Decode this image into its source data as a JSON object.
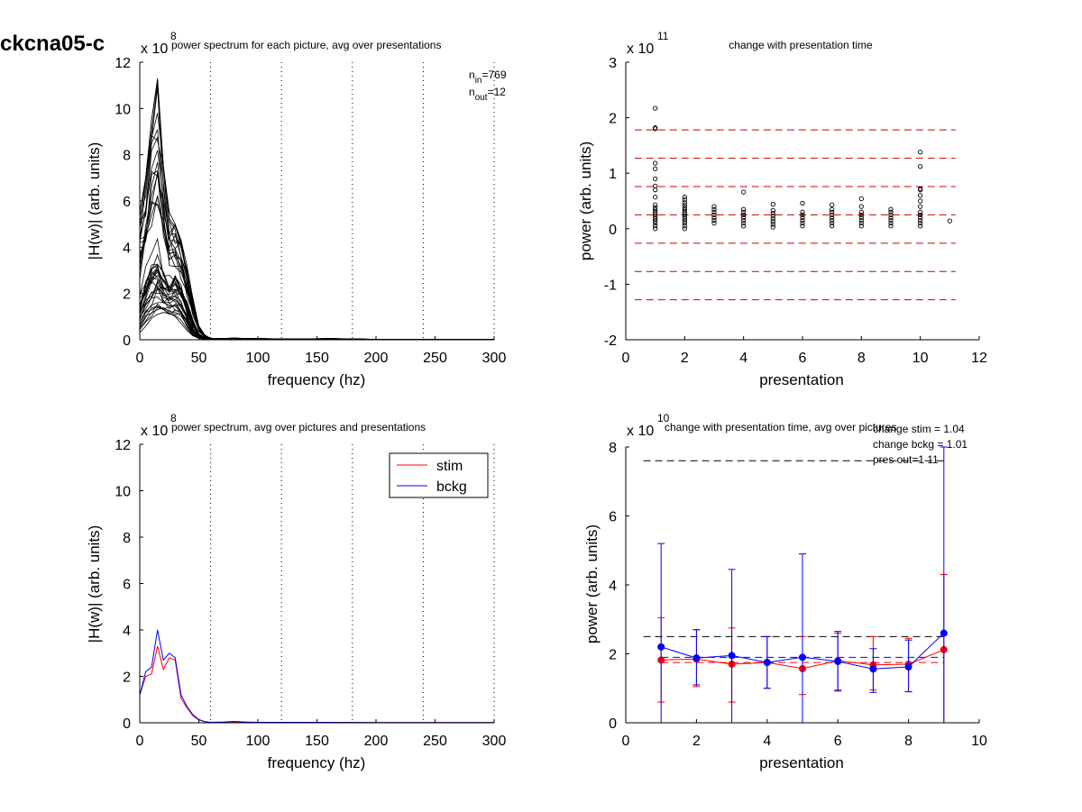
{
  "figure_label": "ckcna05-c",
  "colors": {
    "stim": "#ff0000",
    "bckg": "#0000ff",
    "spectrum_lines": "#000000",
    "dashed_ref_red": "#cc0000",
    "dashed_ref_black": "#000000"
  },
  "chart_data": [
    {
      "id": "p1",
      "type": "line",
      "title": "power spectrum for each picture, avg over presentations",
      "xlabel": "frequency (hz)",
      "ylabel": "|H(w)| (arb. units)",
      "exponent_base": "x 10",
      "exponent_power": "8",
      "xlim": [
        0,
        300
      ],
      "ylim": [
        0,
        12
      ],
      "xticks": [
        0,
        50,
        100,
        150,
        200,
        250,
        300
      ],
      "yticks": [
        0,
        2,
        4,
        6,
        8,
        10,
        12
      ],
      "vlines": [
        60,
        120,
        180,
        240,
        300
      ],
      "n_in_label": "n",
      "n_in_sub": "in",
      "n_in_value": "=769",
      "n_out_label": "n",
      "n_out_sub": "out",
      "n_out_value": "=12",
      "x": [
        0,
        5,
        10,
        15,
        20,
        25,
        30,
        35,
        40,
        45,
        50,
        55,
        60,
        70,
        80,
        90,
        100,
        120,
        140,
        160,
        180,
        200,
        250,
        300
      ],
      "envelope": {
        "mean": [
          1.5,
          2.4,
          2.9,
          3.1,
          2.6,
          2.4,
          2.5,
          2.1,
          1.4,
          0.7,
          0.25,
          0.08,
          0.03,
          0.03,
          0.04,
          0.03,
          0.03,
          0.02,
          0.02,
          0.02,
          0.02,
          0.01,
          0.01,
          0.005
        ],
        "max": [
          5.5,
          7.0,
          9.5,
          11.3,
          7.5,
          5.5,
          5.0,
          4.3,
          3.2,
          1.8,
          0.6,
          0.2,
          0.06,
          0.06,
          0.07,
          0.06,
          0.05,
          0.04,
          0.04,
          0.05,
          0.04,
          0.02,
          0.02,
          0.01
        ],
        "min": [
          0.3,
          0.6,
          0.9,
          1.2,
          1.1,
          1.0,
          1.0,
          0.8,
          0.4,
          0.15,
          0.05,
          0.02,
          0.01,
          0.01,
          0.01,
          0.01,
          0.01,
          0.005,
          0.005,
          0.005,
          0.005,
          0.003,
          0.003,
          0.001
        ]
      },
      "n_curves": 45
    },
    {
      "id": "p2",
      "type": "scatter",
      "title": "change with presentation time",
      "xlabel": "presentation",
      "ylabel": "power (arb. units)",
      "exponent_base": "x 10",
      "exponent_power": "11",
      "xlim": [
        0,
        12
      ],
      "ylim": [
        -2,
        3
      ],
      "xticks": [
        0,
        2,
        4,
        6,
        8,
        10,
        12
      ],
      "yticks": [
        -2,
        -1,
        0,
        1,
        2,
        3
      ],
      "hlines": [
        1.78,
        1.27,
        0.76,
        0.25,
        -0.26,
        -0.77,
        -1.28
      ],
      "hline_range": [
        0.3,
        11.2
      ],
      "points": [
        {
          "x": 1,
          "ys": [
            0.0,
            0.05,
            0.1,
            0.14,
            0.18,
            0.22,
            0.26,
            0.3,
            0.34,
            0.38,
            0.43,
            0.57,
            0.7,
            0.77,
            0.9,
            1.08,
            1.18,
            1.8,
            1.82,
            2.17
          ]
        },
        {
          "x": 2,
          "ys": [
            0.0,
            0.05,
            0.1,
            0.14,
            0.18,
            0.22,
            0.26,
            0.3,
            0.34,
            0.38,
            0.42,
            0.47,
            0.52,
            0.57
          ]
        },
        {
          "x": 3,
          "ys": [
            0.1,
            0.15,
            0.2,
            0.25,
            0.3,
            0.35,
            0.4
          ]
        },
        {
          "x": 4,
          "ys": [
            0.05,
            0.1,
            0.15,
            0.2,
            0.25,
            0.3,
            0.35,
            0.66
          ]
        },
        {
          "x": 5,
          "ys": [
            0.03,
            0.08,
            0.13,
            0.18,
            0.23,
            0.28,
            0.33,
            0.44
          ]
        },
        {
          "x": 6,
          "ys": [
            0.05,
            0.1,
            0.15,
            0.2,
            0.25,
            0.3,
            0.46
          ]
        },
        {
          "x": 7,
          "ys": [
            0.05,
            0.1,
            0.15,
            0.2,
            0.25,
            0.3,
            0.35,
            0.43
          ]
        },
        {
          "x": 8,
          "ys": [
            0.05,
            0.1,
            0.15,
            0.2,
            0.25,
            0.3,
            0.4,
            0.54
          ]
        },
        {
          "x": 9,
          "ys": [
            0.05,
            0.1,
            0.15,
            0.2,
            0.25,
            0.3,
            0.35
          ]
        },
        {
          "x": 10,
          "ys": [
            0.05,
            0.1,
            0.15,
            0.2,
            0.25,
            0.3,
            0.4,
            0.5,
            0.6,
            0.7,
            0.72,
            1.12,
            1.38
          ]
        },
        {
          "x": 11,
          "ys": [
            0.14
          ]
        }
      ]
    },
    {
      "id": "p3",
      "type": "line",
      "title": "power spectrum, avg over pictures and presentations",
      "xlabel": "frequency (hz)",
      "ylabel": "|H(w)| (arb. units)",
      "exponent_base": "x 10",
      "exponent_power": "8",
      "xlim": [
        0,
        300
      ],
      "ylim": [
        0,
        12
      ],
      "xticks": [
        0,
        50,
        100,
        150,
        200,
        250,
        300
      ],
      "yticks": [
        0,
        2,
        4,
        6,
        8,
        10,
        12
      ],
      "vlines": [
        60,
        120,
        180,
        240,
        300
      ],
      "legend": "top-right",
      "x": [
        0,
        5,
        10,
        15,
        20,
        25,
        30,
        35,
        40,
        45,
        50,
        55,
        60,
        70,
        80,
        90,
        100,
        150,
        200,
        250,
        300
      ],
      "series": [
        {
          "name": "stim",
          "color": "#ff0000",
          "values": [
            1.2,
            2.0,
            2.1,
            3.3,
            2.3,
            2.8,
            2.7,
            1.05,
            0.65,
            0.3,
            0.12,
            0.05,
            0.02,
            0.03,
            0.05,
            0.03,
            0.02,
            0.02,
            0.01,
            0.01,
            0.01
          ]
        },
        {
          "name": "bckg",
          "color": "#0000ff",
          "values": [
            1.2,
            2.2,
            2.4,
            4.0,
            2.7,
            3.0,
            2.8,
            1.2,
            0.7,
            0.35,
            0.14,
            0.05,
            0.02,
            0.03,
            0.06,
            0.03,
            0.02,
            0.02,
            0.01,
            0.01,
            0.01
          ]
        }
      ]
    },
    {
      "id": "p4",
      "type": "line",
      "title": "change with presentation time, avg over pictures",
      "xlabel": "presentation",
      "ylabel": "power (arb. units)",
      "exponent_base": "x 10",
      "exponent_power": "10",
      "xlim": [
        0,
        10
      ],
      "ylim": [
        0,
        8
      ],
      "xticks": [
        0,
        2,
        4,
        6,
        8,
        10
      ],
      "yticks": [
        0,
        2,
        4,
        6,
        8
      ],
      "annotations": [
        "change stim = 1.04",
        "change bckg = 1.01",
        "pres out=1 11"
      ],
      "black_dashed": [
        7.6,
        2.5
      ],
      "blue_dashed": 1.9,
      "red_dashed": 1.75,
      "x": [
        1,
        2,
        3,
        4,
        5,
        6,
        7,
        8,
        9
      ],
      "series": [
        {
          "name": "stim",
          "color": "#ff0000",
          "values": [
            1.82,
            1.85,
            1.7,
            1.75,
            1.57,
            1.8,
            1.68,
            1.7,
            2.12
          ],
          "err_low": [
            0.6,
            1.05,
            0.6,
            1.0,
            0.82,
            0.95,
            0.95,
            0.9,
            0.0
          ],
          "err_high": [
            3.05,
            2.7,
            2.75,
            2.5,
            2.5,
            2.6,
            2.5,
            2.45,
            4.3
          ]
        },
        {
          "name": "bckg",
          "color": "#0000ff",
          "values": [
            2.2,
            1.88,
            1.95,
            1.75,
            1.9,
            1.78,
            1.56,
            1.62,
            2.6
          ],
          "err_low": [
            0.0,
            1.1,
            0.0,
            1.0,
            0.0,
            0.92,
            0.88,
            0.9,
            0.0
          ],
          "err_high": [
            5.2,
            2.7,
            4.45,
            2.5,
            4.9,
            2.65,
            2.15,
            2.4,
            8.0
          ]
        }
      ]
    }
  ]
}
